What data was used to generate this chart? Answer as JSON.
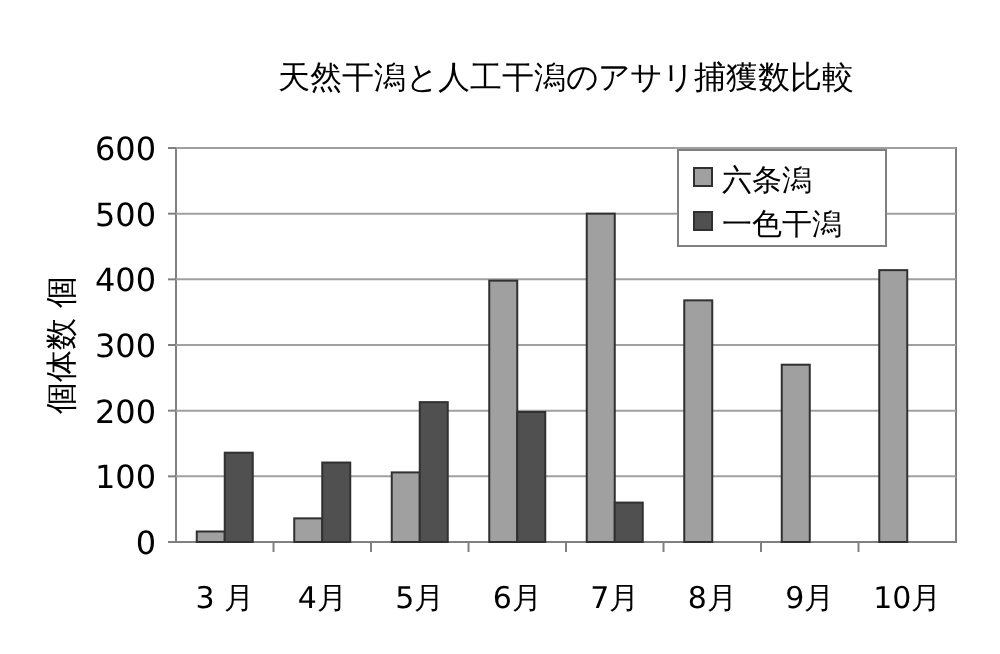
{
  "chart_data": {
    "type": "bar",
    "title": "天然干潟と人工干潟のアサリ捕獲数比較",
    "ylabel": "個体数 個",
    "categories": [
      "3 月",
      "4月",
      "5月",
      "6月",
      "7月",
      "8月",
      "9月",
      "10月"
    ],
    "series": [
      {
        "name": "六条潟",
        "color": "#a0a0a0",
        "values": [
          16,
          36,
          106,
          398,
          500,
          368,
          270,
          414
        ]
      },
      {
        "name": "一色干潟",
        "color": "#505050",
        "values": [
          136,
          121,
          213,
          198,
          60,
          null,
          null,
          null
        ]
      }
    ],
    "ylim": [
      0,
      600
    ],
    "yticks": [
      0,
      100,
      200,
      300,
      400,
      500,
      600
    ],
    "grid": "y",
    "legend": "top right"
  }
}
